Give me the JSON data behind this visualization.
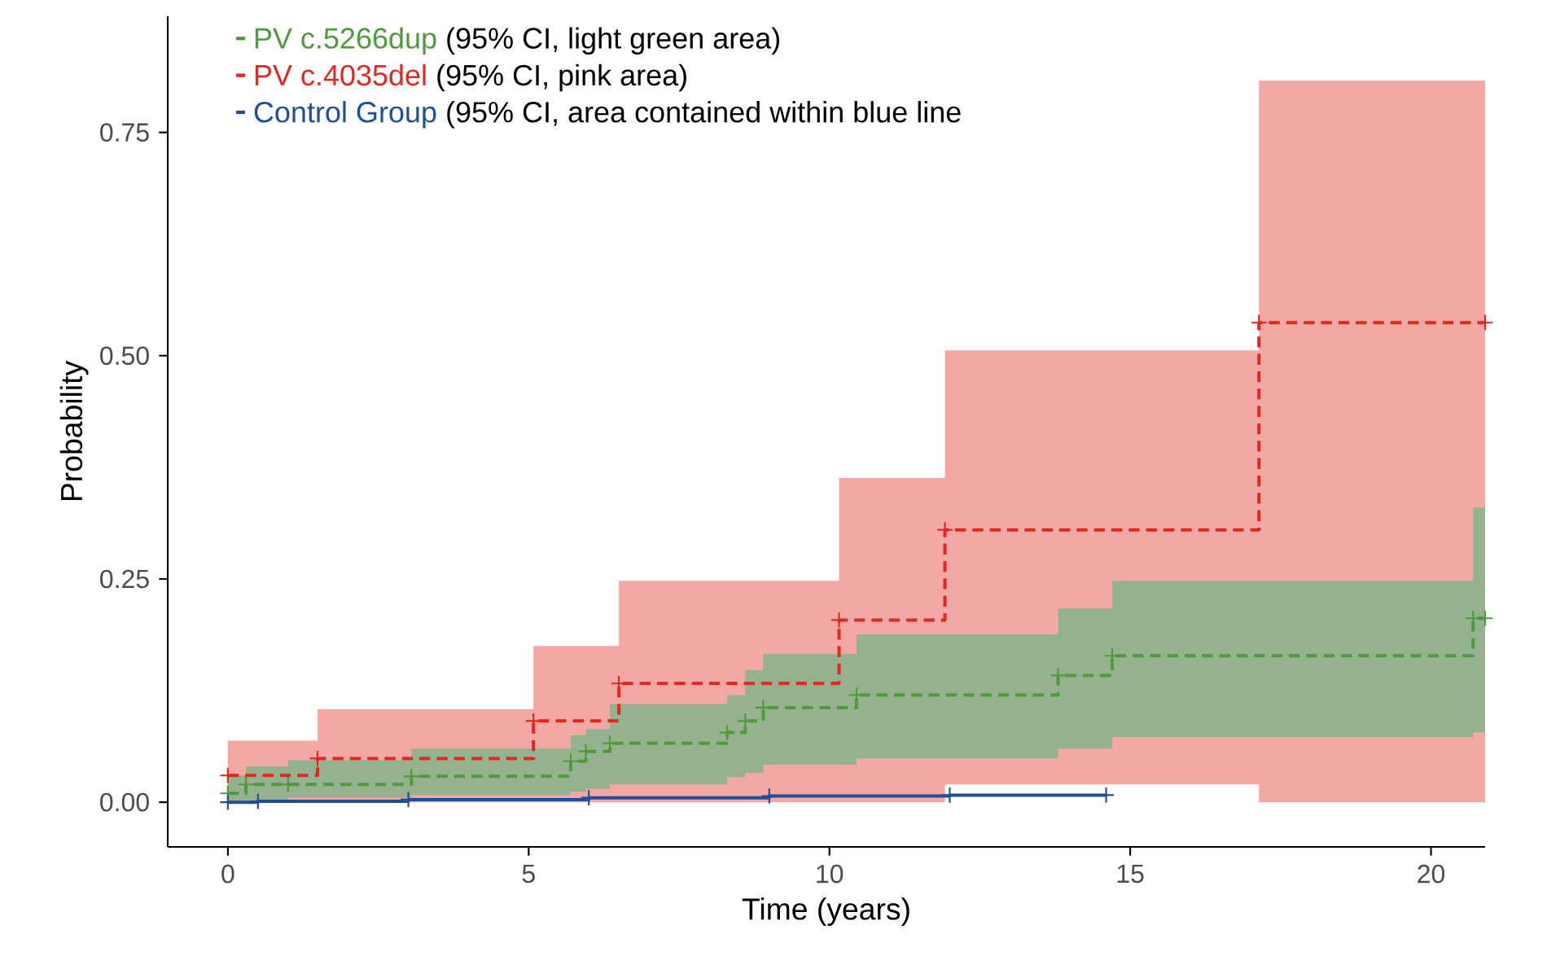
{
  "chart_data": {
    "type": "step",
    "xlabel": "Time (years)",
    "ylabel": "Probability",
    "xlim": [
      -1,
      20.9
    ],
    "ylim": [
      -0.05,
      0.88
    ],
    "xticks": [
      0,
      5,
      10,
      15,
      20
    ],
    "yticks": [
      {
        "value": 0,
        "label": "0.00"
      },
      {
        "value": 0.25,
        "label": "0.25"
      },
      {
        "value": 0.5,
        "label": "0.50"
      },
      {
        "value": 0.75,
        "label": "0.75"
      }
    ],
    "grid": false,
    "legend": "top left",
    "marker": "cross",
    "series": [
      {
        "name": "PV c.5266dup",
        "color": "#4f9a3c",
        "line_style": "dashed",
        "x": [
          0,
          0.3,
          1.0,
          3.05,
          5.7,
          5.95,
          6.35,
          8.3,
          8.6,
          8.9,
          10.45,
          13.8,
          14.7,
          20.7,
          20.9
        ],
        "values": [
          0.01,
          0.02,
          0.02,
          0.029,
          0.046,
          0.057,
          0.066,
          0.078,
          0.091,
          0.106,
          0.12,
          0.142,
          0.164,
          0.206,
          0.206
        ],
        "lower": [
          0,
          0.002,
          0.005,
          0.008,
          0.012,
          0.015,
          0.02,
          0.028,
          0.033,
          0.042,
          0.049,
          0.06,
          0.073,
          0.078,
          0.078
        ],
        "upper": [
          0.03,
          0.04,
          0.047,
          0.06,
          0.075,
          0.082,
          0.11,
          0.12,
          0.148,
          0.166,
          0.188,
          0.217,
          0.248,
          0.33,
          0.33
        ]
      },
      {
        "name": "PV c.4035del",
        "color": "#e3261f",
        "line_style": "dashed",
        "x": [
          0,
          1.49,
          5.08,
          6.5,
          10.16,
          11.92,
          17.14,
          20.9
        ],
        "values": [
          0.03,
          0.049,
          0.091,
          0.133,
          0.204,
          0.305,
          0.537,
          0.537
        ],
        "lower": [
          0,
          0,
          0,
          0,
          0,
          0.02,
          0,
          0
        ],
        "upper": [
          0.069,
          0.104,
          0.175,
          0.248,
          0.363,
          0.506,
          0.808,
          0.808
        ]
      },
      {
        "name": "Control Group",
        "color": "#1f4e9a",
        "line_style": "solid",
        "x": [
          0,
          0.5,
          3,
          6,
          9,
          12,
          14.6
        ],
        "values": [
          0,
          0.001,
          0.003,
          0.005,
          0.007,
          0.008,
          0.008
        ]
      }
    ],
    "annotations": [
      "(95% CI, light green area)",
      "(95% CI,  pink area)",
      "(95% CI, area contained within blue line"
    ]
  }
}
